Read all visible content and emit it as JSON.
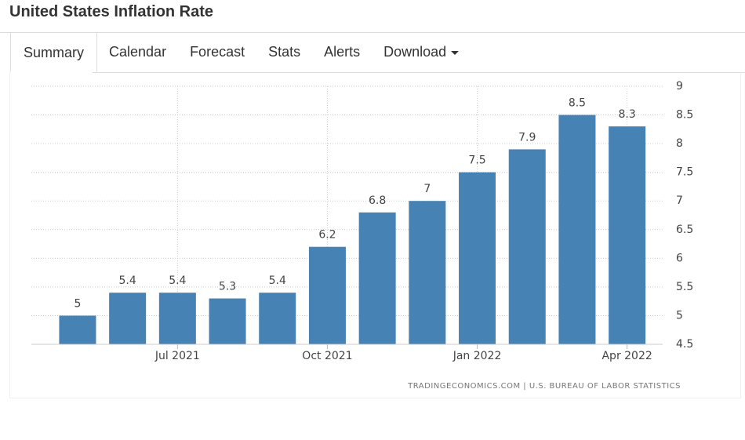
{
  "header": {
    "title": "United States Inflation Rate"
  },
  "tabs": [
    "Summary",
    "Calendar",
    "Forecast",
    "Stats",
    "Alerts",
    "Download"
  ],
  "chart_data": {
    "type": "bar",
    "categories": [
      null,
      null,
      "Jul 2021",
      null,
      null,
      "Oct 2021",
      null,
      null,
      "Jan 2022",
      null,
      null,
      "Apr 2022"
    ],
    "values": [
      5,
      5.4,
      5.4,
      5.3,
      5.4,
      6.2,
      6.8,
      7,
      7.5,
      7.9,
      8.5,
      8.3
    ],
    "color": "#4682b4",
    "ylim": [
      4.5,
      9
    ],
    "yticks": [
      4.5,
      5,
      5.5,
      6,
      6.5,
      7,
      7.5,
      8,
      8.5,
      9
    ],
    "grid": true,
    "source": "TRADINGECONOMICS.COM | U.S. BUREAU OF LABOR STATISTICS"
  }
}
